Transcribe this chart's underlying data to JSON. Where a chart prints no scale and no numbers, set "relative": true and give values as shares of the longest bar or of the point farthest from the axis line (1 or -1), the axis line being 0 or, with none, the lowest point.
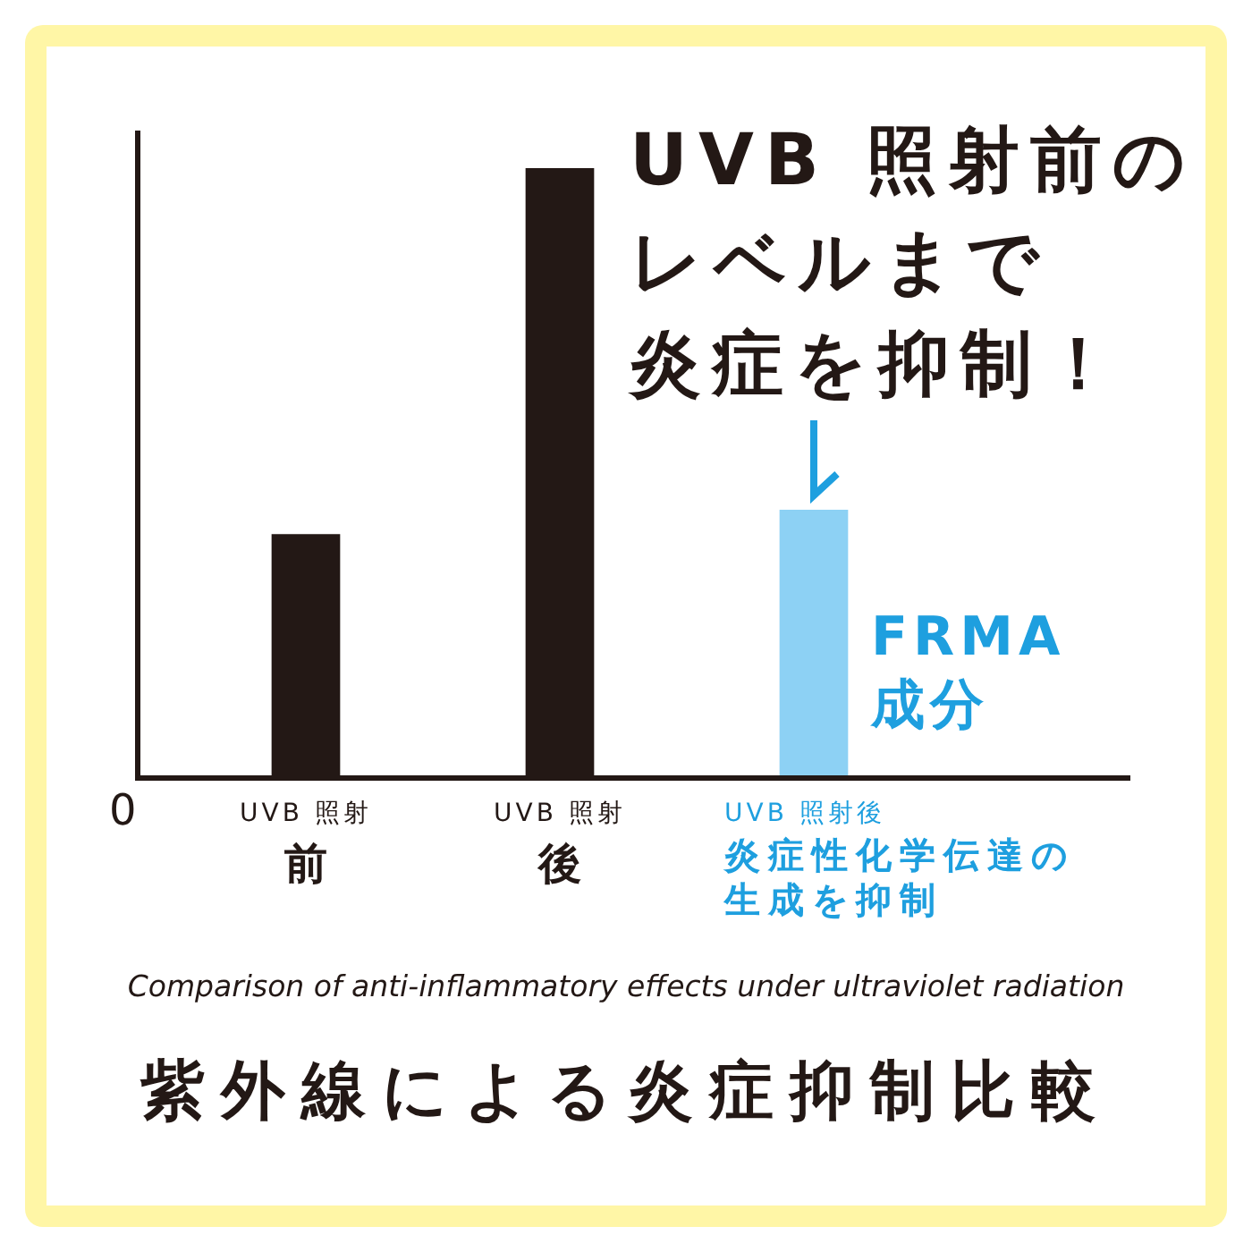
{
  "chart_data": {
    "type": "bar",
    "title": "紫外線による炎症抑制比較",
    "subtitle": "Comparison of anti-inflammatory effects under ultraviolet radiation",
    "categories": [
      "UVB 照射前",
      "UVB 照射後",
      "UVB 照射後炎症性化学伝達の生成を抑制"
    ],
    "values": [
      0.4,
      1,
      0.44
    ],
    "colors": [
      "#231815",
      "#231815",
      "#8dd1f4"
    ],
    "relative": true,
    "annotations": [
      "UVB 照射前のレベルまで炎症を抑制！",
      "FRMA 成分",
      "0"
    ]
  }
}
